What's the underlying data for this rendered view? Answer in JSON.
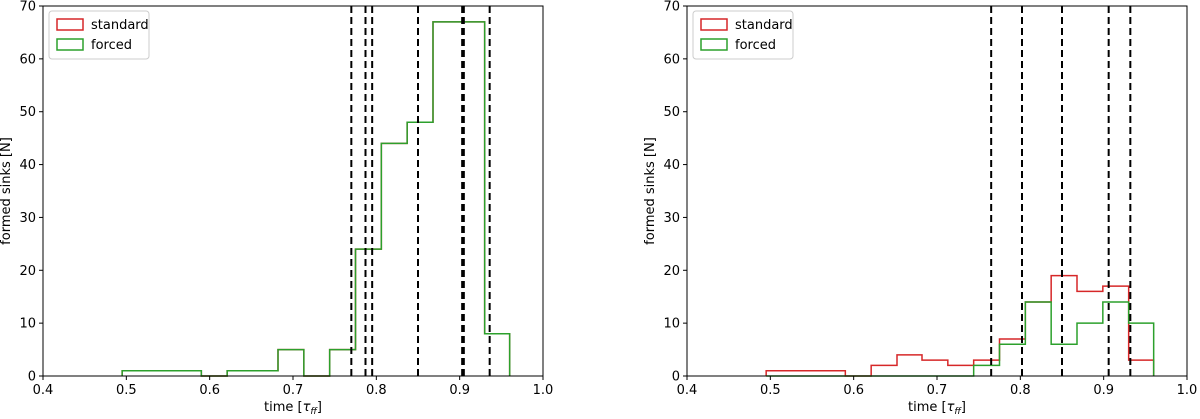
{
  "colors": {
    "standard": "#d62728",
    "forced": "#2ca02c",
    "vline": "#000000"
  },
  "chart_data": [
    {
      "type": "histogram",
      "xlabel": "time [",
      "xlabel_symbol": "τ",
      "xlabel_sub": "ff",
      "xlabel_close": "]",
      "ylabel": "formed sinks [N]",
      "xlim": [
        0.4,
        1.0
      ],
      "ylim": [
        0,
        70
      ],
      "xticks": [
        "0.4",
        "0.5",
        "0.6",
        "0.7",
        "0.8",
        "0.9",
        "1.0"
      ],
      "yticks": [
        "0",
        "10",
        "20",
        "30",
        "40",
        "50",
        "60",
        "70"
      ],
      "legend_position": "top-left",
      "series": [
        {
          "name": "standard",
          "color_key": "standard",
          "edges": [
            0.495,
            0.59,
            0.621,
            0.652,
            0.682,
            0.713,
            0.744,
            0.775,
            0.806,
            0.837,
            0.868,
            0.899,
            0.93,
            0.96
          ],
          "values": [
            1,
            0,
            1,
            1,
            5,
            0,
            5,
            24,
            44,
            48,
            67,
            67,
            8
          ]
        },
        {
          "name": "forced",
          "color_key": "forced",
          "edges": [
            0.495,
            0.59,
            0.621,
            0.652,
            0.682,
            0.713,
            0.744,
            0.775,
            0.806,
            0.837,
            0.868,
            0.899,
            0.93,
            0.96
          ],
          "values": [
            1,
            0,
            1,
            1,
            5,
            0,
            5,
            24,
            44,
            48,
            67,
            67,
            8
          ]
        }
      ],
      "vlines": [
        0.77,
        0.787,
        0.795,
        0.85,
        0.903,
        0.905,
        0.936
      ]
    },
    {
      "type": "histogram",
      "xlabel": "time [",
      "xlabel_symbol": "τ",
      "xlabel_sub": "ff",
      "xlabel_close": "]",
      "ylabel": "formed sinks [N]",
      "xlim": [
        0.4,
        1.0
      ],
      "ylim": [
        0,
        70
      ],
      "xticks": [
        "0.4",
        "0.5",
        "0.6",
        "0.7",
        "0.8",
        "0.9",
        "1.0"
      ],
      "yticks": [
        "0",
        "10",
        "20",
        "30",
        "40",
        "50",
        "60",
        "70"
      ],
      "legend_position": "top-left",
      "series": [
        {
          "name": "standard",
          "color_key": "standard",
          "edges": [
            0.495,
            0.59,
            0.621,
            0.652,
            0.682,
            0.713,
            0.744,
            0.775,
            0.806,
            0.837,
            0.868,
            0.899,
            0.93,
            0.96
          ],
          "values": [
            1,
            0,
            2,
            4,
            3,
            2,
            3,
            7,
            14,
            19,
            16,
            17,
            3
          ]
        },
        {
          "name": "forced",
          "color_key": "forced",
          "edges": [
            0.495,
            0.59,
            0.621,
            0.652,
            0.682,
            0.713,
            0.744,
            0.775,
            0.806,
            0.837,
            0.868,
            0.899,
            0.93,
            0.96
          ],
          "values": [
            0,
            0,
            0,
            0,
            0,
            0,
            2,
            6,
            14,
            6,
            10,
            14,
            10
          ]
        }
      ],
      "vlines": [
        0.765,
        0.802,
        0.85,
        0.906,
        0.932
      ]
    }
  ]
}
